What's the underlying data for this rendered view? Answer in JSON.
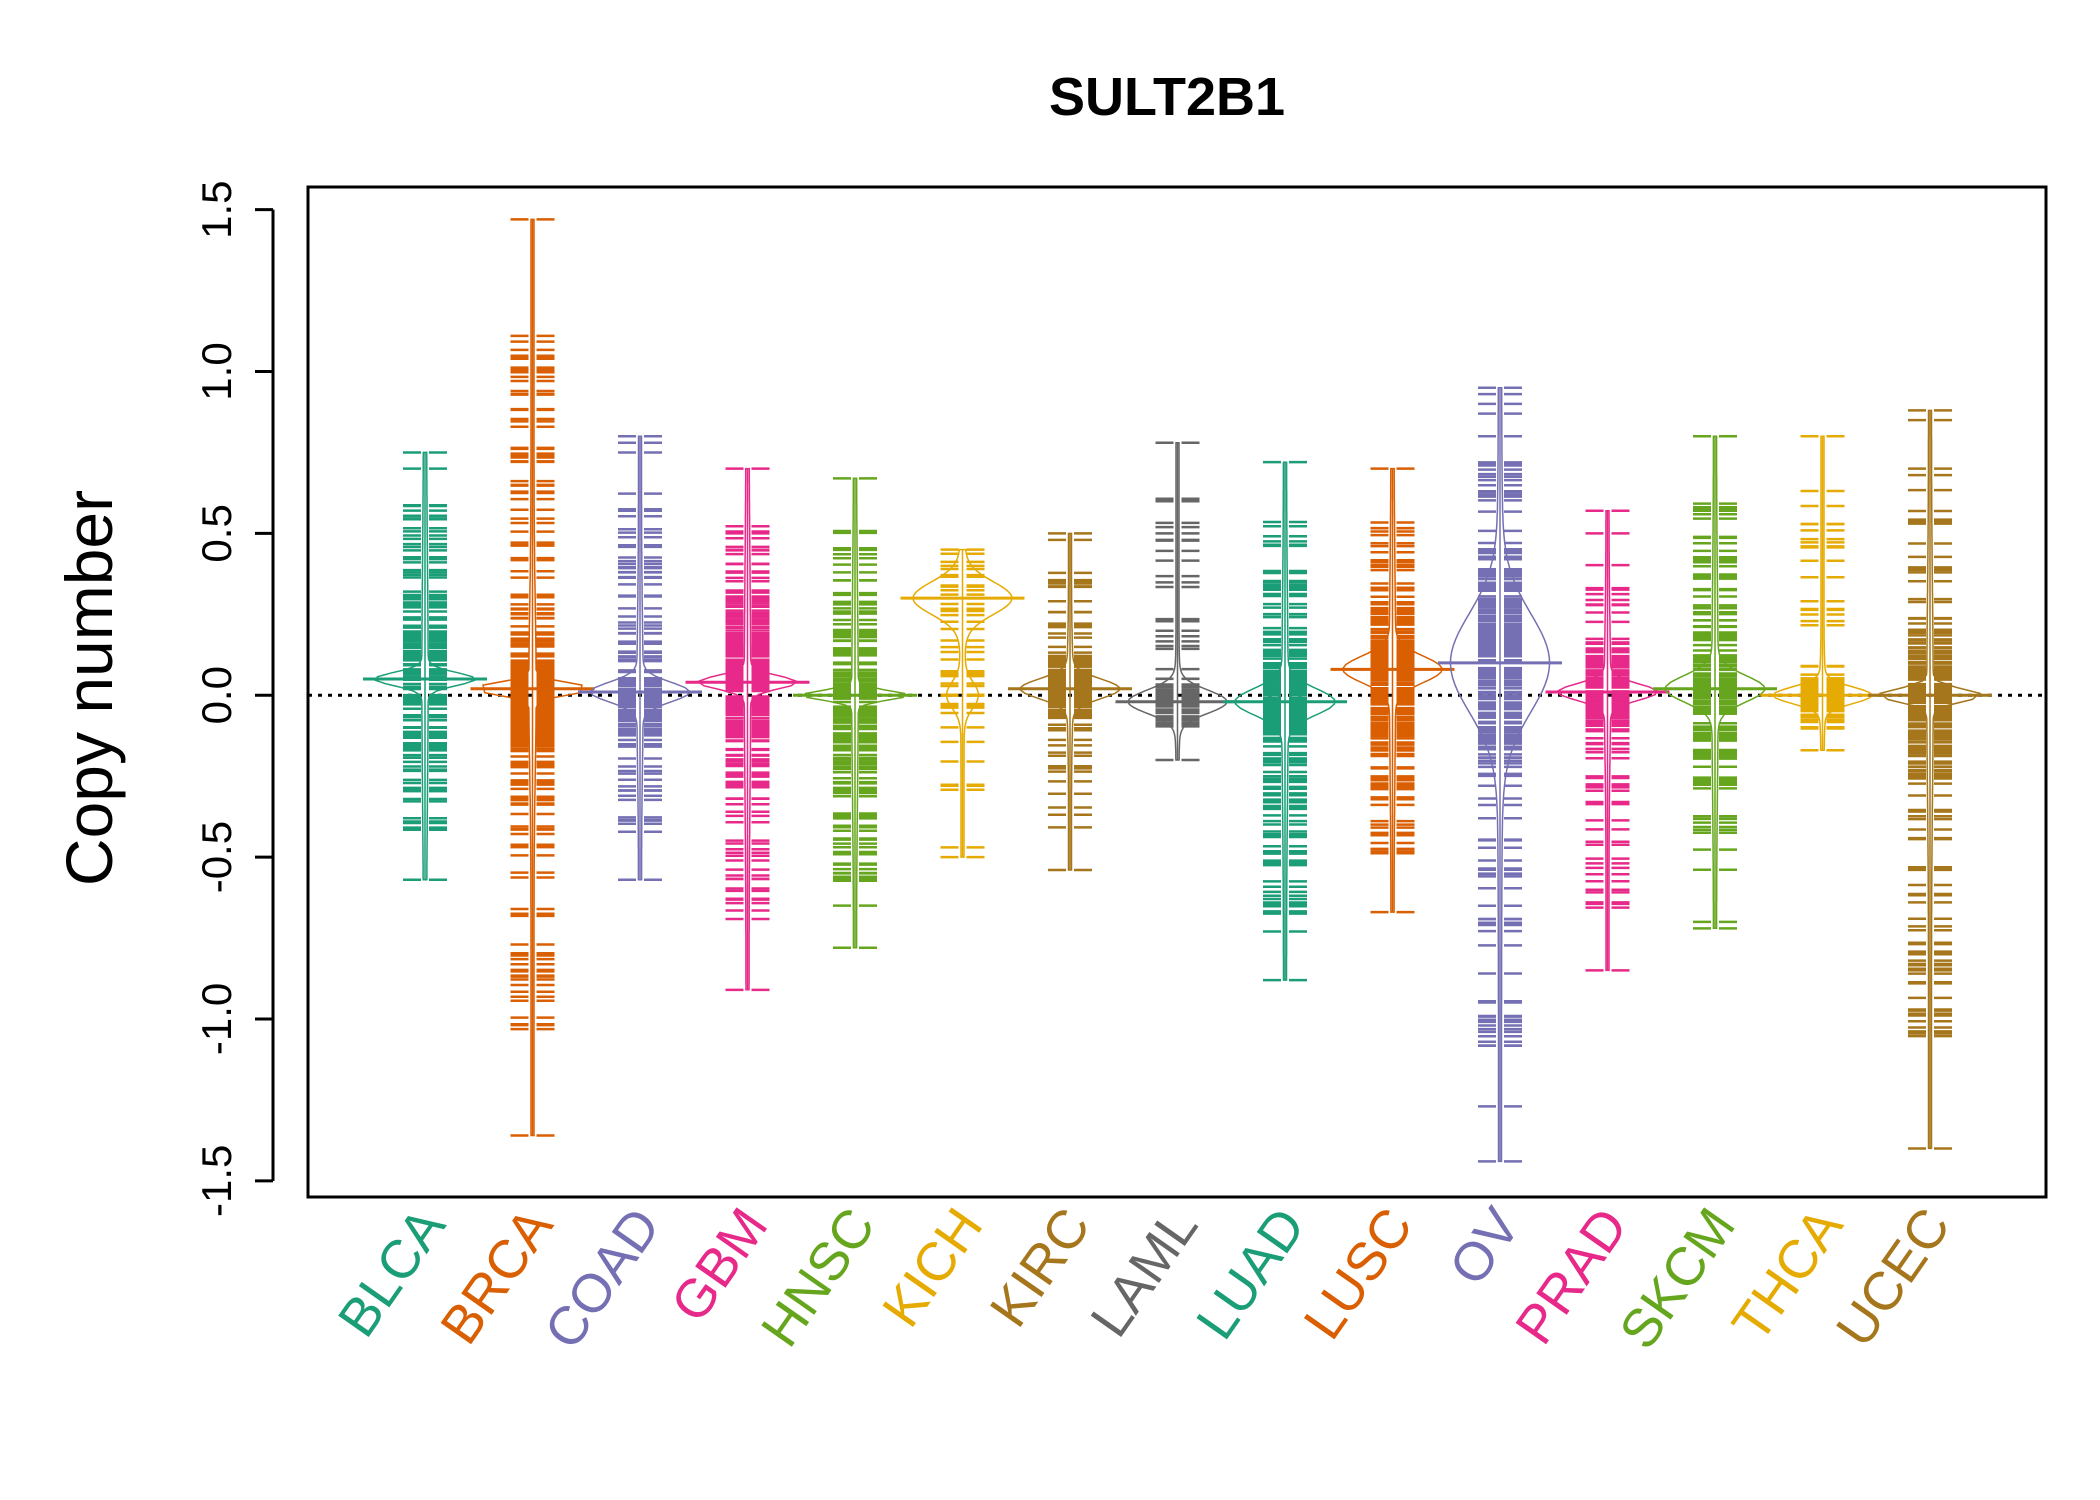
{
  "chart_data": {
    "type": "beanplot",
    "title": "SULT2B1",
    "xlabel": "",
    "ylabel": "Copy number",
    "ylim": [
      -1.55,
      1.57
    ],
    "yticks": [
      "-1.5",
      "-1.0",
      "-0.5",
      "0.0",
      "0.5",
      "1.0",
      "1.5"
    ],
    "reference_line": 0,
    "grid": false,
    "categories": [
      "BLCA",
      "BRCA",
      "COAD",
      "GBM",
      "HNSC",
      "KICH",
      "KIRC",
      "LAML",
      "LUAD",
      "LUSC",
      "OV",
      "PRAD",
      "SKCM",
      "THCA",
      "UCEC"
    ],
    "colors": [
      "#1b9e77",
      "#d95f02",
      "#7570b3",
      "#e7298a",
      "#66a61e",
      "#e6ab02",
      "#a6761d",
      "#666666",
      "#1b9e77",
      "#d95f02",
      "#7570b3",
      "#e7298a",
      "#66a61e",
      "#e6ab02",
      "#a6761d"
    ],
    "series": [
      {
        "name": "BLCA",
        "min": -0.57,
        "max": 0.75,
        "n": 130,
        "spread": 0.35,
        "peaks": [
          [
            0.05,
            0.02,
            1.0
          ]
        ],
        "extremes": [
          0.75,
          0.7,
          -0.57
        ]
      },
      {
        "name": "BRCA",
        "min": -1.36,
        "max": 1.47,
        "n": 260,
        "spread": 0.25,
        "peaks": [
          [
            0.02,
            0.015,
            1.0
          ]
        ],
        "extremes": [
          1.47,
          1.11,
          0.94,
          0.93,
          -0.77,
          -1.36
        ]
      },
      {
        "name": "COAD",
        "min": -0.57,
        "max": 0.8,
        "n": 110,
        "spread": 0.22,
        "peaks": [
          [
            0.01,
            0.03,
            1.0
          ]
        ],
        "extremes": [
          0.8,
          0.78,
          0.75,
          -0.57
        ]
      },
      {
        "name": "GBM",
        "min": -0.91,
        "max": 0.7,
        "n": 200,
        "spread": 0.35,
        "peaks": [
          [
            0.04,
            0.02,
            1.0
          ]
        ],
        "extremes": [
          0.7,
          -0.91
        ]
      },
      {
        "name": "HNSC",
        "min": -0.78,
        "max": 0.67,
        "n": 160,
        "spread": 0.3,
        "peaks": [
          [
            0.0,
            0.015,
            1.0
          ]
        ],
        "extremes": [
          0.67,
          -0.65,
          -0.78
        ]
      },
      {
        "name": "KICH",
        "min": -0.5,
        "max": 0.45,
        "n": 45,
        "spread": 0.2,
        "peaks": [
          [
            0.3,
            0.05,
            1.0
          ],
          [
            0.0,
            0.04,
            0.3
          ]
        ],
        "extremes": [
          0.45,
          -0.47,
          -0.5
        ]
      },
      {
        "name": "KIRC",
        "min": -0.54,
        "max": 0.5,
        "n": 110,
        "spread": 0.12,
        "peaks": [
          [
            0.02,
            0.03,
            1.0
          ]
        ],
        "extremes": [
          0.5,
          0.48,
          -0.54
        ]
      },
      {
        "name": "LAML",
        "min": -0.2,
        "max": 0.78,
        "n": 70,
        "spread": 0.08,
        "peaks": [
          [
            -0.02,
            0.035,
            1.0
          ]
        ],
        "extremes": [
          0.78,
          0.5,
          0.48,
          -0.2
        ]
      },
      {
        "name": "LUAD",
        "min": -0.88,
        "max": 0.72,
        "n": 180,
        "spread": 0.3,
        "peaks": [
          [
            -0.02,
            0.04,
            1.0
          ]
        ],
        "extremes": [
          0.72,
          -0.73,
          -0.88
        ]
      },
      {
        "name": "LUSC",
        "min": -0.67,
        "max": 0.7,
        "n": 200,
        "spread": 0.3,
        "peaks": [
          [
            0.08,
            0.04,
            1.0
          ]
        ],
        "extremes": [
          0.7,
          -0.67
        ]
      },
      {
        "name": "OV",
        "min": -1.44,
        "max": 0.95,
        "n": 230,
        "spread": 0.4,
        "peaks": [
          [
            0.1,
            0.15,
            1.0
          ]
        ],
        "extremes": [
          0.95,
          0.93,
          0.9,
          0.87,
          0.8,
          -1.04,
          -1.27,
          -1.44
        ]
      },
      {
        "name": "PRAD",
        "min": -0.85,
        "max": 0.57,
        "n": 120,
        "spread": 0.2,
        "peaks": [
          [
            0.01,
            0.025,
            1.0
          ]
        ],
        "extremes": [
          0.57,
          0.5,
          -0.64,
          -0.85
        ]
      },
      {
        "name": "SKCM",
        "min": -0.72,
        "max": 0.8,
        "n": 150,
        "spread": 0.3,
        "peaks": [
          [
            0.02,
            0.04,
            1.0
          ]
        ],
        "extremes": [
          0.8,
          0.57,
          -0.7,
          -0.72
        ]
      },
      {
        "name": "THCA",
        "min": -0.17,
        "max": 0.8,
        "n": 80,
        "spread": 0.08,
        "peaks": [
          [
            0.0,
            0.025,
            1.0
          ]
        ],
        "extremes": [
          0.8,
          0.46,
          -0.17
        ]
      },
      {
        "name": "UCEC",
        "min": -1.4,
        "max": 0.88,
        "n": 200,
        "spread": 0.3,
        "peaks": [
          [
            0.0,
            0.02,
            1.0
          ]
        ],
        "extremes": [
          0.88,
          0.85,
          0.7,
          0.68,
          -0.8,
          -0.83,
          -0.85,
          -1.4
        ]
      }
    ]
  }
}
